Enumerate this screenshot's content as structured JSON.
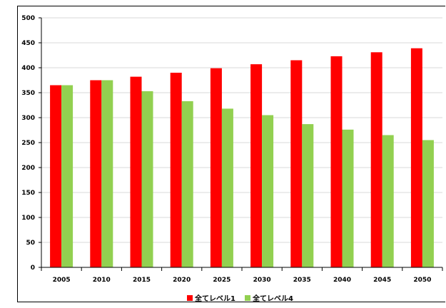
{
  "chart_data": {
    "type": "bar",
    "categories": [
      "2005",
      "2010",
      "2015",
      "2020",
      "2025",
      "2030",
      "2035",
      "2040",
      "2045",
      "2050"
    ],
    "series": [
      {
        "name": "全てレベル1",
        "color": "#ff0000",
        "values": [
          365,
          375,
          382,
          390,
          399,
          407,
          415,
          423,
          431,
          439
        ]
      },
      {
        "name": "全てレベル4",
        "color": "#92d050",
        "values": [
          365,
          375,
          353,
          333,
          318,
          305,
          287,
          276,
          265,
          255
        ]
      }
    ],
    "ylim": [
      0,
      500
    ],
    "yticks": [
      "0",
      "50",
      "100",
      "150",
      "200",
      "250",
      "300",
      "350",
      "400",
      "450",
      "500"
    ],
    "grid": true,
    "legend_position": "bottom"
  }
}
